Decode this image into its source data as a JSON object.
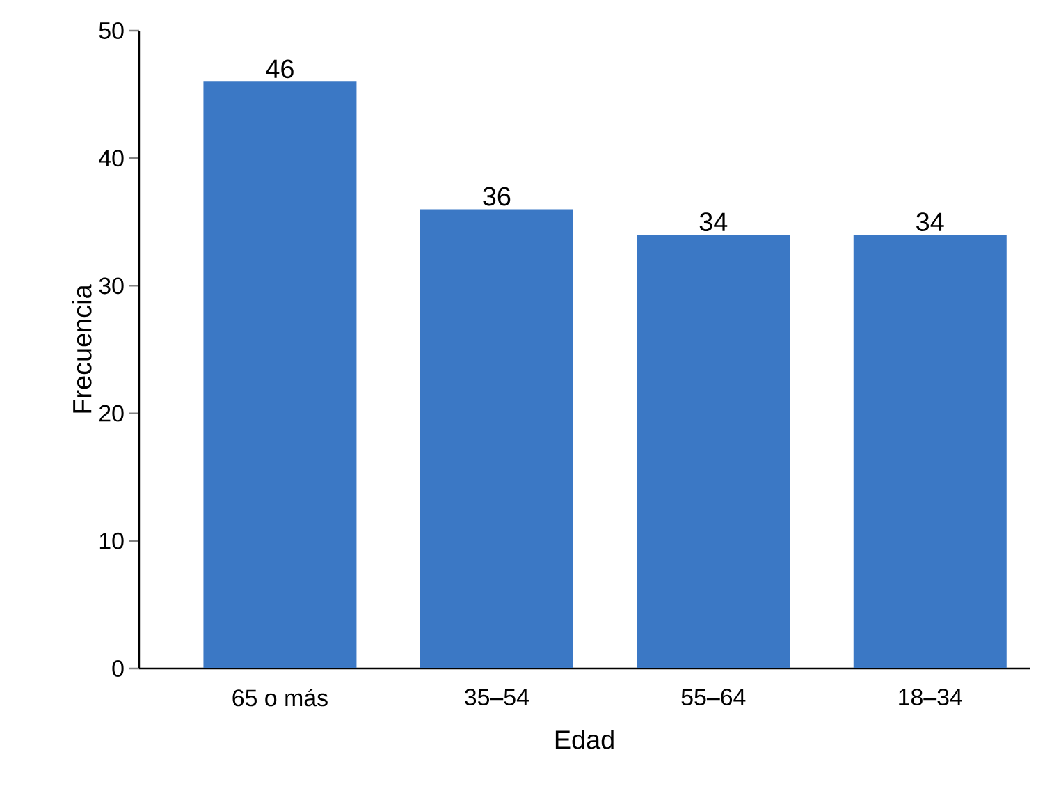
{
  "chart_data": {
    "type": "bar",
    "xlabel": "Edad",
    "ylabel": "Frecuencia",
    "categories": [
      "65 o más",
      "35–54",
      "55–64",
      "18–34"
    ],
    "values": [
      46,
      36,
      34,
      34
    ],
    "color": "#3b78c5",
    "data_labels": true,
    "ylim": [
      0,
      50
    ],
    "yticks": [
      0,
      10,
      20,
      30,
      40,
      50
    ]
  }
}
